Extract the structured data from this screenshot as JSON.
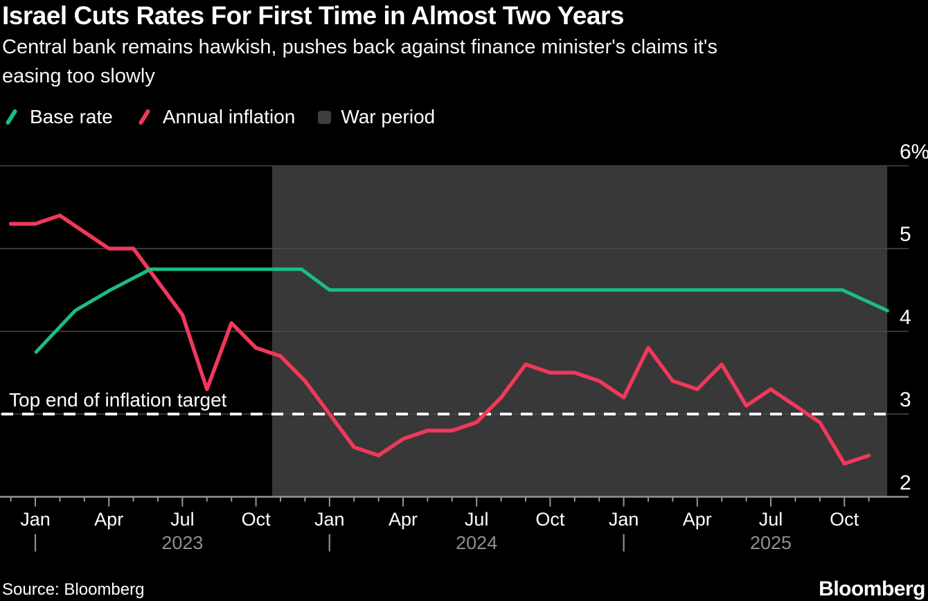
{
  "header": {
    "title": "Israel Cuts Rates For First Time in Almost Two Years",
    "subtitle_lines": [
      "Central bank remains hawkish, pushes back against finance minister's claims it's",
      "easing too slowly"
    ]
  },
  "legend": {
    "items": [
      {
        "label": "Base rate",
        "marker": "line-icon",
        "color": "#1abe80"
      },
      {
        "label": "Annual inflation",
        "marker": "line-icon",
        "color": "#f0385c"
      },
      {
        "label": "War period",
        "marker": "square-icon",
        "color": "#3f3f3f"
      }
    ]
  },
  "annotation": {
    "target_label": "Top end of inflation target"
  },
  "footer": {
    "source": "Source: Bloomberg",
    "logo": "Bloomberg"
  },
  "colors": {
    "background": "#000000",
    "base_rate": "#1abe80",
    "annual_inflation": "#f0385c",
    "war_region": "#383838",
    "gridline": "#4b4b4b",
    "axis": "#969696",
    "target_line": "#ffffff",
    "year_text": "#8f8f8f"
  },
  "chart_data": {
    "type": "line",
    "title": "Israel Cuts Rates For First Time in Almost Two Years",
    "ylim": [
      2,
      6
    ],
    "yticks": [
      {
        "value": 2,
        "label": "2"
      },
      {
        "value": 3,
        "label": "3"
      },
      {
        "value": 4,
        "label": "4"
      },
      {
        "value": 5,
        "label": "5"
      },
      {
        "value": 6,
        "label": "6%"
      }
    ],
    "x_axis": {
      "start_month": "2022-12",
      "end_month": "2025-11",
      "major_month_labels": [
        "Jan",
        "Apr",
        "Jul",
        "Oct"
      ],
      "years": [
        {
          "label": "2023",
          "start": "2023-01",
          "center": "2023-07"
        },
        {
          "label": "2024",
          "start": "2024-01",
          "center": "2024-07"
        },
        {
          "label": "2025",
          "start": "2025-01",
          "center": "2025-07"
        }
      ]
    },
    "target_line": {
      "value": 3,
      "label": "Top end of inflation target"
    },
    "war_period": {
      "label": "War period",
      "start_month_offset_from_jan2023": 9.66,
      "end_month_offset_from_jan2023": 34.75
    },
    "series": [
      {
        "name": "Base rate",
        "color": "#1abe80",
        "points": [
          [
            "2023-01-02",
            3.75
          ],
          [
            "2023-02-20",
            4.25
          ],
          [
            "2023-04-03",
            4.5
          ],
          [
            "2023-05-22",
            4.75
          ],
          [
            "2023-11-27",
            4.75
          ],
          [
            "2024-01-01",
            4.5
          ],
          [
            "2025-09-29",
            4.5
          ],
          [
            "2025-11-24",
            4.25
          ]
        ]
      },
      {
        "name": "Annual inflation",
        "color": "#f0385c",
        "start_month": "2022-11",
        "monthly_values": [
          5.3,
          5.3,
          5.4,
          5.2,
          5.0,
          5.0,
          4.6,
          4.2,
          3.3,
          4.1,
          3.8,
          3.7,
          3.4,
          3.0,
          2.6,
          2.5,
          2.7,
          2.8,
          2.8,
          2.9,
          3.2,
          3.6,
          3.5,
          3.5,
          3.4,
          3.2,
          3.8,
          3.4,
          3.3,
          3.6,
          3.1,
          3.3,
          3.1,
          2.9,
          2.4,
          2.5
        ]
      }
    ]
  }
}
